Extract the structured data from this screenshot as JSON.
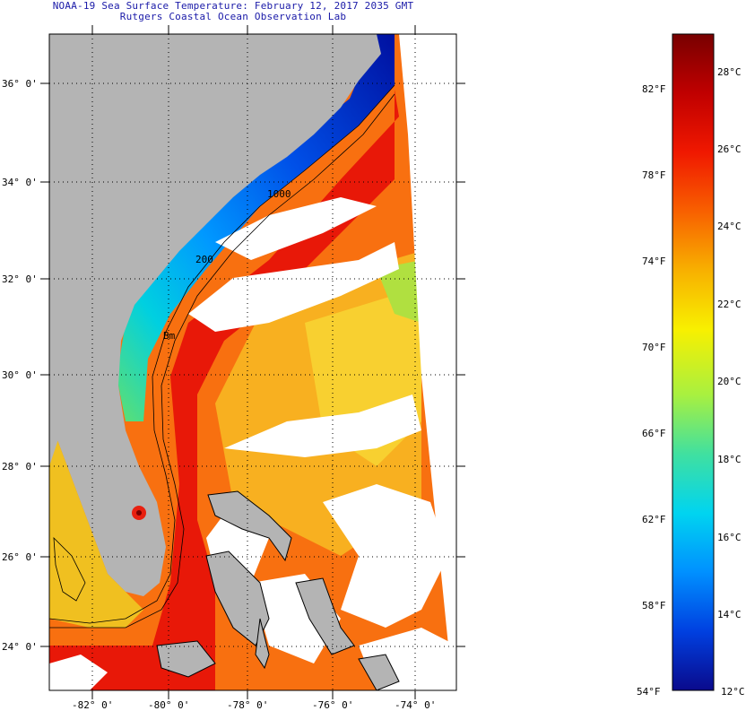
{
  "header": {
    "title": "NOAA-19 Sea Surface Temperature:  February 12, 2017 2035 GMT",
    "subtitle": "Rutgers Coastal Ocean Observation Lab"
  },
  "map": {
    "lat_labels": [
      "36° 0'",
      "34° 0'",
      "32° 0'",
      "30° 0'",
      "28° 0'",
      "26° 0'",
      "24° 0'"
    ],
    "lon_labels": [
      "-82° 0'",
      "-80° 0'",
      "-78° 0'",
      "-76° 0'",
      "-74° 0'"
    ],
    "contour_labels": [
      "200",
      "1000",
      "Bm"
    ]
  },
  "colorbar": {
    "fahrenheit_labels": [
      "82°F",
      "78°F",
      "74°F",
      "70°F",
      "66°F",
      "62°F",
      "58°F",
      "54°F"
    ],
    "celsius_labels": [
      "28°C",
      "26°C",
      "24°C",
      "22°C",
      "20°C",
      "18°C",
      "16°C",
      "14°C",
      "12°C"
    ],
    "colors": [
      "#0a0a8c",
      "#0040e0",
      "#0090ff",
      "#00d4f0",
      "#40e0a0",
      "#a8f040",
      "#f8f000",
      "#f8b000",
      "#f86000",
      "#f01800",
      "#c00000",
      "#780000"
    ]
  },
  "colors": {
    "land": "#b4b4b4",
    "cloud": "#ffffff",
    "frame": "#000000"
  }
}
